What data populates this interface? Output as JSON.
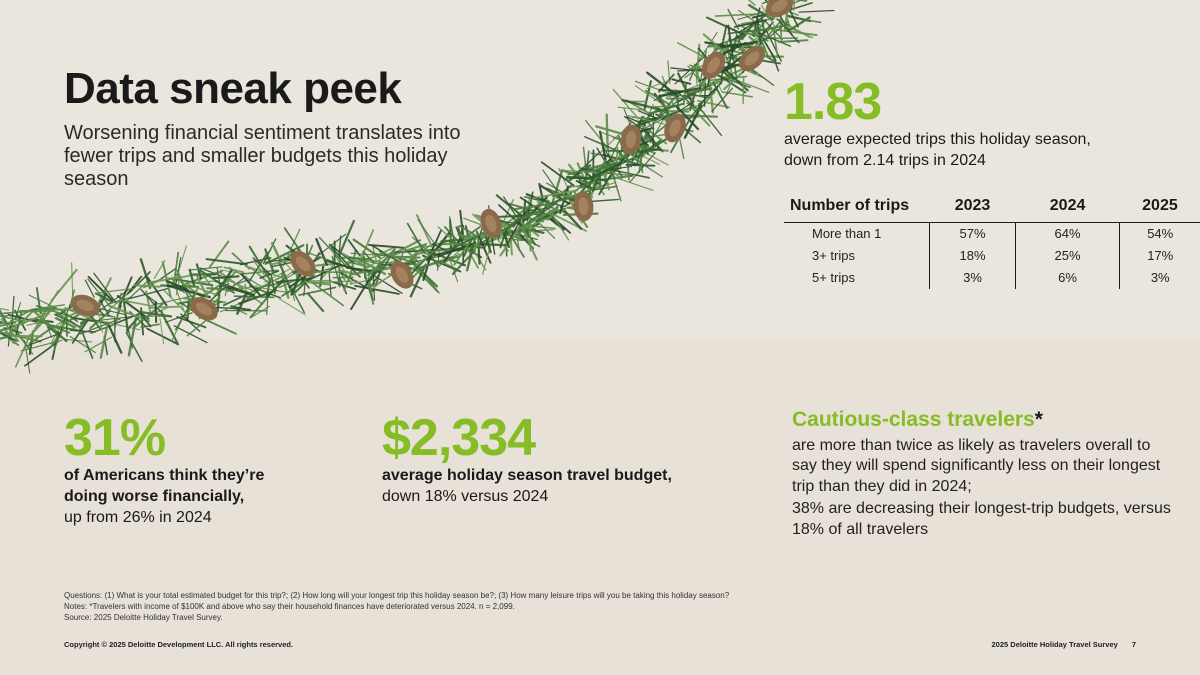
{
  "title": "Data sneak peek",
  "subtitle": "Worsening financial sentiment translates into fewer trips and smaller budgets this holiday season",
  "trips_stat": {
    "value": "1.83",
    "line1": "average expected trips this holiday season,",
    "line2": "down from 2.14 trips in 2024"
  },
  "trips_table": {
    "header": [
      "Number of trips",
      "2023",
      "2024",
      "2025"
    ],
    "rows": [
      [
        "More than 1",
        "57%",
        "64%",
        "54%"
      ],
      [
        "3+ trips",
        "18%",
        "25%",
        "17%"
      ],
      [
        "5+ trips",
        "3%",
        "6%",
        "3%"
      ]
    ]
  },
  "americans_stat": {
    "value": "31%",
    "line1": "of Americans think they’re",
    "line2": "doing worse financially,",
    "line3": "up from 26% in 2024"
  },
  "budget_stat": {
    "value": "$2,334",
    "line1": "average holiday season travel budget,",
    "line2": "down 18% versus 2024"
  },
  "cautious": {
    "title": "Cautious-class travelers",
    "star": "*",
    "body1": "are more than twice as likely as travelers overall to say they will spend significantly less on their longest trip than they did in 2024;",
    "body2": "38% are decreasing their longest-trip budgets, versus 18% of all travelers"
  },
  "notes": {
    "questions": "Questions: (1) What is your total estimated budget for this trip?; (2) How long will your longest trip this holiday season be?; (3) How many leisure trips will you be taking this holiday season?",
    "notes": "Notes: *Travelers with income of $100K and above who say their household finances have deteriorated versus 2024. n = 2,099.",
    "source": "Source: 2025 Deloitte Holiday Travel Survey."
  },
  "footer": {
    "copyright": "Copyright © 2025 Deloitte Development LLC. All rights reserved.",
    "survey": "2025 Deloitte Holiday Travel Survey",
    "page": "7"
  },
  "colors": {
    "accent": "#86bc25",
    "background": "#ebe6dd",
    "text": "#1a1a1a"
  }
}
